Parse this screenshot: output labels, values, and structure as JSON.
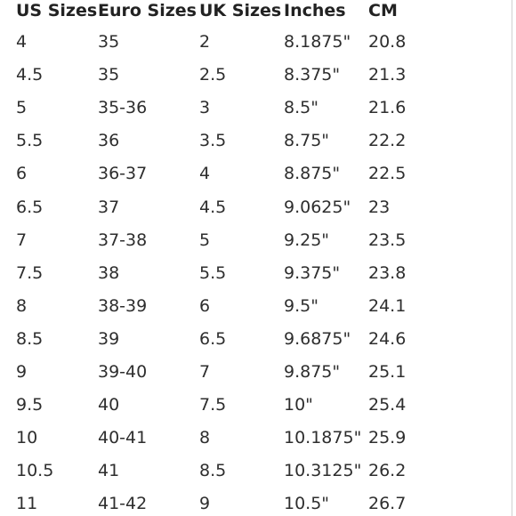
{
  "table": {
    "headers": [
      "US Sizes",
      "Euro Sizes",
      "UK Sizes",
      "Inches",
      "CM"
    ],
    "rows": [
      [
        "4",
        "35",
        "2",
        "8.1875\"",
        "20.8"
      ],
      [
        "4.5",
        "35",
        "2.5",
        "8.375\"",
        "21.3"
      ],
      [
        "5",
        "35-36",
        "3",
        "8.5\"",
        "21.6"
      ],
      [
        "5.5",
        "36",
        "3.5",
        "8.75\"",
        "22.2"
      ],
      [
        "6",
        "36-37",
        "4",
        "8.875\"",
        "22.5"
      ],
      [
        "6.5",
        "37",
        "4.5",
        "9.0625\"",
        "23"
      ],
      [
        "7",
        "37-38",
        "5",
        "9.25\"",
        "23.5"
      ],
      [
        "7.5",
        "38",
        "5.5",
        "9.375\"",
        "23.8"
      ],
      [
        "8",
        "38-39",
        "6",
        "9.5\"",
        "24.1"
      ],
      [
        "8.5",
        "39",
        "6.5",
        "9.6875\"",
        "24.6"
      ],
      [
        "9",
        "39-40",
        "7",
        "9.875\"",
        "25.1"
      ],
      [
        "9.5",
        "40",
        "7.5",
        "10\"",
        "25.4"
      ],
      [
        "10",
        "40-41",
        "8",
        "10.1875\"",
        "25.9"
      ],
      [
        "10.5",
        "41",
        "8.5",
        "10.3125\"",
        "26.2"
      ],
      [
        "11",
        "41-42",
        "9",
        "10.5\"",
        "26.7"
      ]
    ]
  },
  "colors": {
    "text": "#2e2e2e",
    "header": "#222222",
    "background": "#ffffff"
  }
}
